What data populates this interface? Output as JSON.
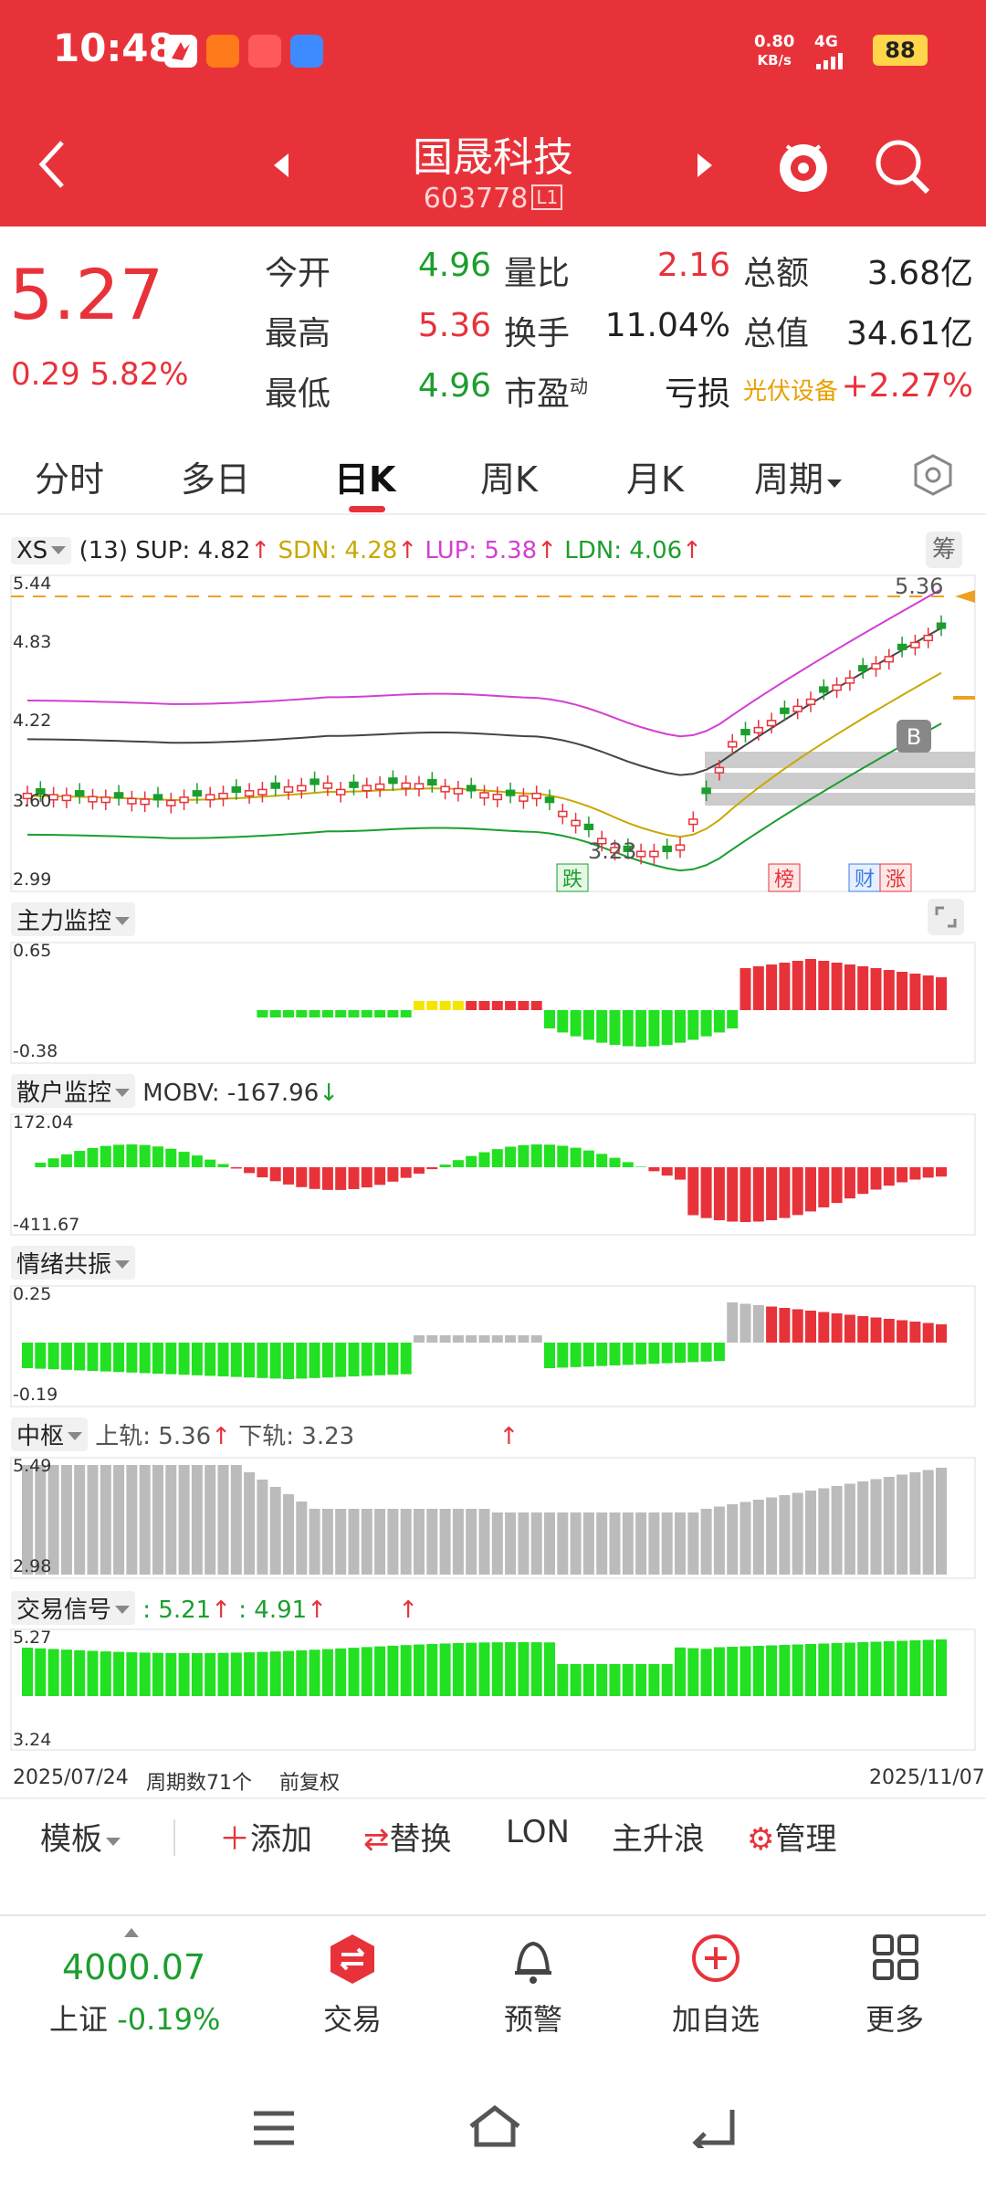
{
  "status_bar": {
    "time": "10:48",
    "net_speed_value": "0.80",
    "net_speed_unit": "KB/s",
    "network": "4G",
    "battery": "88"
  },
  "header": {
    "stock_name": "国晟科技",
    "stock_code": "603778",
    "code_tag": "L1"
  },
  "quote": {
    "price": "5.27",
    "change": "0.29",
    "change_pct": "5.82%",
    "open_label": "今开",
    "open": "4.96",
    "high_label": "最高",
    "high": "5.36",
    "low_label": "最低",
    "low": "4.96",
    "vol_ratio_label": "量比",
    "vol_ratio": "2.16",
    "turnover_label": "换手",
    "turnover": "11.04%",
    "pe_label": "市盈",
    "pe_sup": "动",
    "pe": "亏损",
    "amount_label": "总额",
    "amount": "3.68亿",
    "mcap_label": "总值",
    "mcap": "34.61亿",
    "sector": "光伏设备",
    "sector_change": "+2.27%"
  },
  "tabs": [
    "分时",
    "多日",
    "日K",
    "周K",
    "月K",
    "周期"
  ],
  "main_chart": {
    "indicator": "XS",
    "period": "(13)",
    "sup": "SUP: 4.82",
    "sdn": "SDN: 4.28",
    "lup": "LUP: 5.38",
    "ldn": "LDN: 4.06",
    "right_btn": "筹",
    "y_ticks": [
      "5.44",
      "4.83",
      "4.22",
      "3.60",
      "2.99"
    ],
    "high_note": "5.36",
    "low_note": "3.23",
    "b_marker": "B",
    "tags": [
      "跌",
      "榜",
      "财",
      "涨"
    ]
  },
  "panels": {
    "main_force": {
      "title": "主力监控",
      "top": "0.65",
      "bottom": "-0.38"
    },
    "retail": {
      "title": "散户监控",
      "extra": "MOBV: -167.96",
      "top": "172.04",
      "bottom": "-411.67"
    },
    "sentiment": {
      "title": "情绪共振",
      "top": "0.25",
      "bottom": "-0.19"
    },
    "pivot": {
      "title": "中枢",
      "upper": "上轨: 5.36",
      "lower": "下轨: 3.23",
      "top": "5.49",
      "bottom": "2.98"
    },
    "signal": {
      "title": "交易信号",
      "v1": ": 5.21",
      "v2": ": 4.91",
      "top": "5.27",
      "bottom": "3.24"
    }
  },
  "footer_info": {
    "start_date": "2025/07/24",
    "periods": "周期数71个",
    "adjust": "前复权",
    "end_date": "2025/11/07"
  },
  "toolbar": {
    "template": "模板",
    "add": "添加",
    "replace": "替换",
    "lon": "LON",
    "main_wave": "主升浪",
    "manage": "管理"
  },
  "bottom_nav": {
    "index_value": "4000.07",
    "index_name": "上证",
    "index_change": "-0.19%",
    "trade": "交易",
    "alert": "预警",
    "add_fav": "加自选",
    "more": "更多"
  },
  "colors": {
    "header_red": "#e8323a",
    "up_red": "#e8323a",
    "down_green": "#1c9e2e"
  }
}
